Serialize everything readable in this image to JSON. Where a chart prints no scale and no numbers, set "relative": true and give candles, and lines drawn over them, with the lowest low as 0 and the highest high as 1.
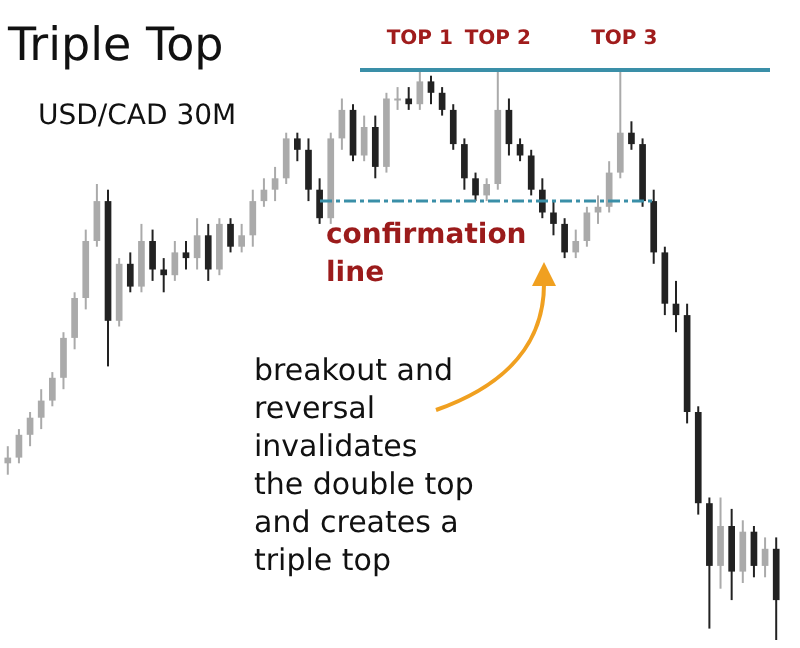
{
  "chart_data": {
    "type": "candlestick",
    "title": "Triple Top",
    "subtitle": "USD/CAD 30M",
    "relative": true,
    "categories": [
      null,
      null,
      null,
      null,
      null,
      null,
      null,
      null,
      null,
      null,
      null,
      null,
      null,
      null,
      null,
      null,
      null,
      null,
      null,
      null,
      null,
      null,
      null,
      null,
      null,
      null,
      null,
      null,
      null,
      null,
      null,
      null,
      null,
      null,
      null,
      null,
      null,
      null,
      null,
      null,
      null,
      null,
      null,
      null,
      null,
      null,
      null,
      null,
      null,
      null,
      null,
      null,
      null,
      null,
      null,
      null,
      null,
      null,
      null,
      null,
      null,
      null,
      null,
      null,
      null,
      null,
      null,
      null,
      null,
      null
    ],
    "ohlc": [
      [
        0.31,
        0.34,
        0.29,
        0.32
      ],
      [
        0.32,
        0.37,
        0.31,
        0.36
      ],
      [
        0.36,
        0.4,
        0.34,
        0.39
      ],
      [
        0.39,
        0.44,
        0.37,
        0.42
      ],
      [
        0.42,
        0.47,
        0.41,
        0.46
      ],
      [
        0.46,
        0.54,
        0.44,
        0.53
      ],
      [
        0.53,
        0.61,
        0.51,
        0.6
      ],
      [
        0.6,
        0.72,
        0.58,
        0.7
      ],
      [
        0.7,
        0.8,
        0.69,
        0.77
      ],
      [
        0.77,
        0.79,
        0.48,
        0.56
      ],
      [
        0.56,
        0.67,
        0.55,
        0.66
      ],
      [
        0.66,
        0.68,
        0.61,
        0.62
      ],
      [
        0.62,
        0.73,
        0.61,
        0.7
      ],
      [
        0.7,
        0.72,
        0.63,
        0.65
      ],
      [
        0.65,
        0.67,
        0.61,
        0.64
      ],
      [
        0.64,
        0.7,
        0.63,
        0.68
      ],
      [
        0.68,
        0.7,
        0.65,
        0.67
      ],
      [
        0.67,
        0.74,
        0.65,
        0.71
      ],
      [
        0.71,
        0.73,
        0.63,
        0.65
      ],
      [
        0.65,
        0.74,
        0.64,
        0.73
      ],
      [
        0.73,
        0.74,
        0.68,
        0.69
      ],
      [
        0.69,
        0.73,
        0.68,
        0.71
      ],
      [
        0.71,
        0.79,
        0.69,
        0.77
      ],
      [
        0.77,
        0.81,
        0.76,
        0.79
      ],
      [
        0.79,
        0.83,
        0.77,
        0.81
      ],
      [
        0.81,
        0.89,
        0.8,
        0.88
      ],
      [
        0.88,
        0.89,
        0.84,
        0.86
      ],
      [
        0.86,
        0.88,
        0.77,
        0.79
      ],
      [
        0.79,
        0.81,
        0.73,
        0.74
      ],
      [
        0.74,
        0.89,
        0.73,
        0.88
      ],
      [
        0.88,
        0.95,
        0.86,
        0.93
      ],
      [
        0.93,
        0.94,
        0.84,
        0.85
      ],
      [
        0.85,
        0.92,
        0.84,
        0.9
      ],
      [
        0.9,
        0.92,
        0.81,
        0.83
      ],
      [
        0.83,
        0.96,
        0.82,
        0.95
      ],
      [
        0.95,
        0.97,
        0.93,
        0.95
      ],
      [
        0.95,
        0.97,
        0.93,
        0.94
      ],
      [
        0.94,
        1,
        0.93,
        0.98
      ],
      [
        0.98,
        0.99,
        0.94,
        0.96
      ],
      [
        0.96,
        0.97,
        0.92,
        0.93
      ],
      [
        0.93,
        0.94,
        0.86,
        0.87
      ],
      [
        0.87,
        0.88,
        0.79,
        0.81
      ],
      [
        0.81,
        0.82,
        0.77,
        0.78
      ],
      [
        0.78,
        0.81,
        0.77,
        0.8
      ],
      [
        0.8,
        1,
        0.79,
        0.93
      ],
      [
        0.93,
        0.95,
        0.85,
        0.87
      ],
      [
        0.87,
        0.88,
        0.84,
        0.85
      ],
      [
        0.85,
        0.86,
        0.78,
        0.79
      ],
      [
        0.79,
        0.81,
        0.74,
        0.75
      ],
      [
        0.75,
        0.77,
        0.71,
        0.73
      ],
      [
        0.73,
        0.74,
        0.67,
        0.68
      ],
      [
        0.68,
        0.72,
        0.67,
        0.7
      ],
      [
        0.7,
        0.76,
        0.69,
        0.75
      ],
      [
        0.75,
        0.78,
        0.73,
        0.76
      ],
      [
        0.76,
        0.84,
        0.75,
        0.82
      ],
      [
        0.82,
        1,
        0.81,
        0.89
      ],
      [
        0.89,
        0.91,
        0.86,
        0.87
      ],
      [
        0.87,
        0.88,
        0.76,
        0.77
      ],
      [
        0.77,
        0.79,
        0.66,
        0.68
      ],
      [
        0.68,
        0.69,
        0.57,
        0.59
      ],
      [
        0.59,
        0.63,
        0.54,
        0.57
      ],
      [
        0.57,
        0.59,
        0.38,
        0.4
      ],
      [
        0.4,
        0.41,
        0.22,
        0.24
      ],
      [
        0.24,
        0.25,
        0.02,
        0.13
      ],
      [
        0.13,
        0.25,
        0.09,
        0.2
      ],
      [
        0.2,
        0.23,
        0.07,
        0.12
      ],
      [
        0.12,
        0.21,
        0.1,
        0.19
      ],
      [
        0.19,
        0.2,
        0.11,
        0.13
      ],
      [
        0.13,
        0.18,
        0.11,
        0.16
      ],
      [
        0.16,
        0.18,
        0,
        0.07
      ]
    ],
    "ref_lines": [
      {
        "axis": "y",
        "value": 1,
        "color": "#3a8fa8",
        "line_style": "solid"
      },
      {
        "axis": "y",
        "value": 0.77,
        "label": "confirmation line",
        "color": "#3a8fa8",
        "line_style": "dashed"
      }
    ],
    "annotations": [
      "TOP 1",
      "TOP 2",
      "TOP 3",
      "breakout and\nreversal\ninvalidates\nthe double top\nand creates a\ntriple top"
    ]
  }
}
